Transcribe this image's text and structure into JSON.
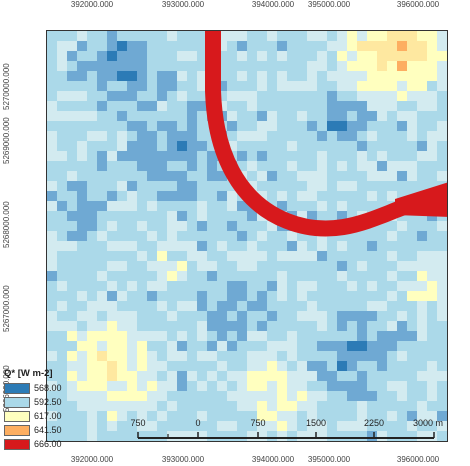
{
  "map": {
    "x_ticks": [
      "392000.000",
      "393000.000",
      "394000.000",
      "395000.000",
      "396000.000"
    ],
    "y_ticks": [
      "5270000.000",
      "5269000.000",
      "5268000.000",
      "5267000.000",
      "5266000.000"
    ],
    "river_color": "#d7191c"
  },
  "legend": {
    "title": "Q* [W m-2]",
    "items": [
      {
        "label": "568.00",
        "color": "#2c7bb6"
      },
      {
        "label": "592.50",
        "color": "#abd9e9"
      },
      {
        "label": "617.00",
        "color": "#ffffbf"
      },
      {
        "label": "641.50",
        "color": "#fdae61"
      },
      {
        "label": "666.00",
        "color": "#d7191c"
      }
    ]
  },
  "scalebar": {
    "labels": [
      "750",
      "0",
      "750",
      "1500",
      "2250",
      "3000 m"
    ]
  }
}
